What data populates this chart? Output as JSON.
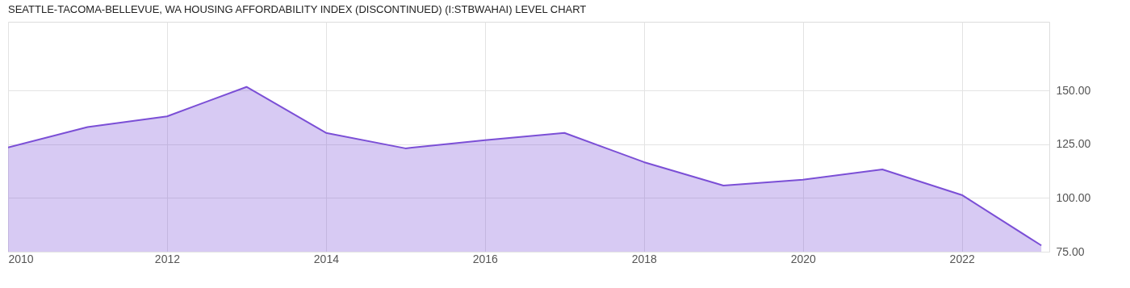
{
  "chart_data": {
    "type": "area",
    "title": "SEATTLE-TACOMA-BELLEVUE, WA HOUSING AFFORDABILITY INDEX (DISCONTINUED) (I:STBWAHAI) LEVEL CHART",
    "x": [
      2010,
      2011,
      2012,
      2013,
      2014,
      2015,
      2016,
      2017,
      2018,
      2019,
      2020,
      2021,
      2022,
      2023
    ],
    "series": [
      {
        "color": "#7b4fd6",
        "values": [
          123.5,
          133,
          138,
          151.7,
          130.3,
          123.1,
          126.9,
          130.3,
          116.7,
          105.8,
          108.5,
          113.3,
          101.4,
          77.9
        ]
      }
    ],
    "xlim": [
      2010,
      2023.1
    ],
    "xticks": [
      2010,
      2012,
      2014,
      2016,
      2018,
      2020,
      2022
    ],
    "ylim": [
      75,
      182
    ],
    "yticks": [
      {
        "value": 75,
        "label": "75.00"
      },
      {
        "value": 100,
        "label": "100.00"
      },
      {
        "value": 125,
        "label": "125.00"
      },
      {
        "value": 150,
        "label": "150.00"
      }
    ],
    "grid": true,
    "marker": "none",
    "line_style": "solid"
  }
}
